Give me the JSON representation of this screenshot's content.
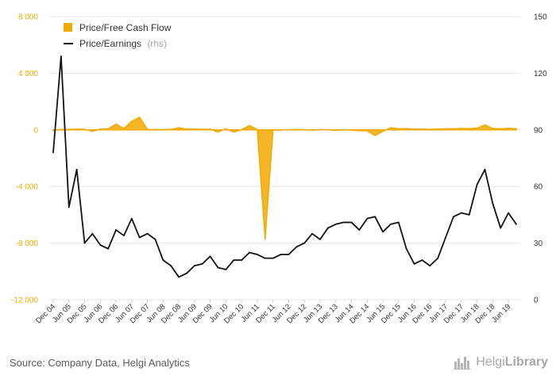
{
  "chart_data": {
    "type": "line",
    "x": [
      "Dec 04",
      "Mar 05",
      "Jun 05",
      "Sep 05",
      "Dec 05",
      "Mar 06",
      "Jun 06",
      "Sep 06",
      "Dec 06",
      "Mar 07",
      "Jun 07",
      "Sep 07",
      "Dec 07",
      "Mar 08",
      "Jun 08",
      "Sep 08",
      "Dec 08",
      "Mar 09",
      "Jun 09",
      "Sep 09",
      "Dec 09",
      "Mar 10",
      "Jun 10",
      "Sep 10",
      "Dec 10",
      "Mar 11",
      "Jun 11",
      "Sep 11",
      "Dec 11",
      "Mar 12",
      "Jun 12",
      "Sep 12",
      "Dec 12",
      "Mar 13",
      "Jun 13",
      "Sep 13",
      "Dec 13",
      "Mar 14",
      "Jun 14",
      "Sep 14",
      "Dec 14",
      "Mar 15",
      "Jun 15",
      "Sep 15",
      "Dec 15",
      "Mar 16",
      "Jun 16",
      "Sep 16",
      "Dec 16",
      "Mar 17",
      "Jun 17",
      "Sep 17",
      "Dec 17",
      "Mar 18",
      "Jun 18",
      "Sep 18",
      "Dec 18",
      "Mar 19",
      "Jun 19",
      "Sep 19"
    ],
    "xticks": [
      "Dec 04",
      "Jun 05",
      "Dec 05",
      "Jun 06",
      "Dec 06",
      "Jun 07",
      "Dec 07",
      "Jun 08",
      "Dec 08",
      "Jun 09",
      "Dec 09",
      "Jun 10",
      "Dec 10",
      "Jun 11",
      "Dec 11",
      "Jun 12",
      "Dec 12",
      "Jun 13",
      "Dec 13",
      "Jun 14",
      "Dec 14",
      "Jun 15",
      "Dec 15",
      "Jun 16",
      "Dec 16",
      "Jun 17",
      "Dec 17",
      "Jun 18",
      "Dec 18",
      "Jun 19"
    ],
    "series": [
      {
        "name": "Price/Free Cash Flow",
        "axis": "left",
        "kind": "area",
        "color": "#f2a900",
        "values": [
          -50,
          30,
          40,
          50,
          40,
          -100,
          60,
          80,
          400,
          100,
          600,
          900,
          20,
          30,
          20,
          40,
          150,
          50,
          60,
          40,
          50,
          -150,
          80,
          -150,
          20,
          300,
          30,
          -7700,
          -20,
          -10,
          20,
          30,
          10,
          -20,
          20,
          10,
          -30,
          20,
          -10,
          -50,
          -60,
          -400,
          -100,
          150,
          80,
          90,
          60,
          50,
          40,
          50,
          70,
          80,
          100,
          90,
          120,
          350,
          100,
          80,
          110,
          90
        ]
      },
      {
        "name": "Price/Earnings",
        "axis": "right",
        "kind": "line",
        "color": "#111111",
        "values": [
          78,
          129,
          49,
          69,
          30,
          35,
          29,
          27,
          37,
          34,
          43,
          33,
          35,
          32,
          21,
          18,
          12,
          14,
          18,
          19,
          23,
          17,
          16,
          21,
          21,
          25,
          24,
          22,
          22,
          24,
          24,
          28,
          30,
          35,
          32,
          38,
          40,
          41,
          41,
          37,
          43,
          44,
          36,
          40,
          41,
          27,
          19,
          21,
          18,
          22,
          33,
          44,
          46,
          45,
          61,
          69,
          51,
          38,
          46,
          40
        ]
      }
    ],
    "y_left": {
      "ylim": [
        -12000,
        8000
      ],
      "ticks": [
        "8 000",
        "4 000",
        "0",
        "-4 000",
        "-8 000",
        "-12 000"
      ],
      "color": "#f2a900"
    },
    "y_right": {
      "ylim": [
        0,
        150
      ],
      "ticks": [
        "150",
        "120",
        "90",
        "60",
        "30",
        "0"
      ],
      "color": "#333333"
    },
    "grid": true,
    "legend_position": "top-left",
    "legend": [
      {
        "label": "Price/Free Cash Flow",
        "suffix": "",
        "color": "#f2a900"
      },
      {
        "label": "Price/Earnings",
        "suffix": "(rhs)",
        "color": "#111111"
      }
    ]
  },
  "footer": {
    "source": "Source: Company Data, Helgi Analytics",
    "logo_light": "Helgi",
    "logo_strong": "Library"
  }
}
